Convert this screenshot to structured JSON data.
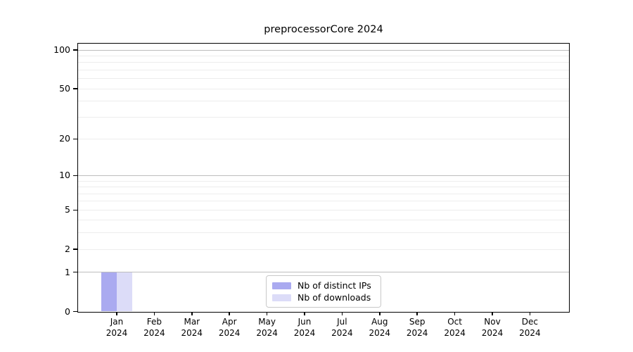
{
  "chart_data": {
    "type": "bar",
    "title": "preprocessorCore 2024",
    "categories": [
      "Jan",
      "Feb",
      "Mar",
      "Apr",
      "May",
      "Jun",
      "Jul",
      "Aug",
      "Sep",
      "Oct",
      "Nov",
      "Dec"
    ],
    "category_year": "2024",
    "series": [
      {
        "name": "Nb of distinct IPs",
        "color": "#aaaaf0",
        "values": [
          1,
          0,
          0,
          0,
          0,
          0,
          0,
          0,
          0,
          0,
          0,
          0
        ]
      },
      {
        "name": "Nb of downloads",
        "color": "#dcdcf8",
        "values": [
          1,
          0,
          0,
          0,
          0,
          0,
          0,
          0,
          0,
          0,
          0,
          0
        ]
      }
    ],
    "y_axis": {
      "scale": "log1p",
      "tick_labels": [
        "100",
        "50",
        "20",
        "10",
        "5",
        "2",
        "1",
        "0"
      ],
      "tick_values": [
        100,
        50,
        20,
        10,
        5,
        2,
        1,
        0
      ],
      "major_gridline_values": [
        100,
        10,
        1
      ],
      "minor_gridline_values": [
        90,
        80,
        70,
        60,
        50,
        40,
        30,
        20,
        9,
        8,
        7,
        6,
        5,
        4,
        3,
        2
      ],
      "top_value": 112
    },
    "legend": {
      "position": "bottom-center"
    },
    "colors": {
      "axis": "#000000",
      "major_grid": "#bdbdbd",
      "minor_grid": "#ededed",
      "background": "#ffffff"
    }
  }
}
